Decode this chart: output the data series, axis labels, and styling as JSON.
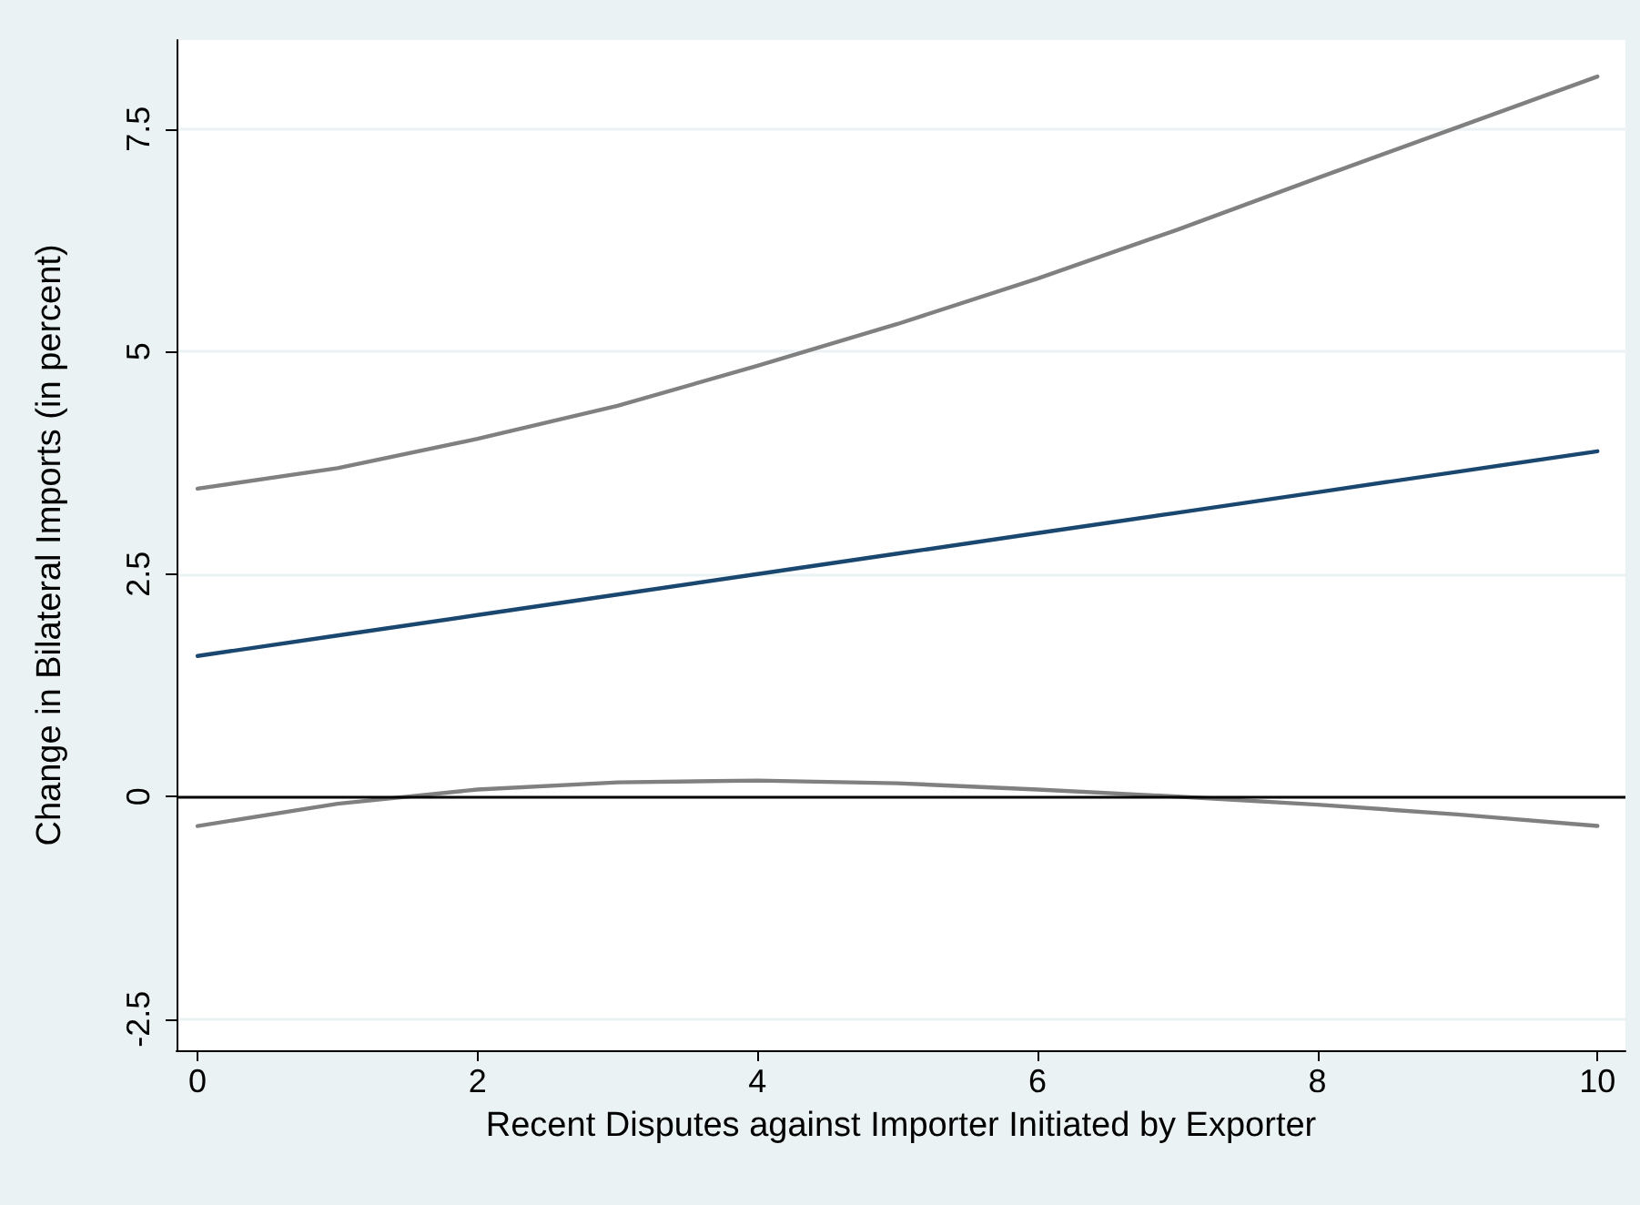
{
  "chart_data": {
    "type": "line",
    "xlabel": "Recent Disputes against Importer Initiated by Exporter",
    "ylabel": "Change in Bilateral Imports (in percent)",
    "x": [
      0,
      1,
      2,
      3,
      4,
      5,
      6,
      7,
      8,
      9,
      10
    ],
    "series": [
      {
        "color": "#808080",
        "values": [
          3.46,
          3.69,
          4.02,
          4.39,
          4.84,
          5.31,
          5.82,
          6.37,
          6.95,
          7.52,
          8.09
        ]
      },
      {
        "color": "#1a476f",
        "values": [
          1.58,
          1.81,
          2.04,
          2.27,
          2.5,
          2.73,
          2.96,
          3.19,
          3.42,
          3.65,
          3.88
        ]
      },
      {
        "color": "#808080",
        "values": [
          -0.33,
          -0.08,
          0.08,
          0.16,
          0.18,
          0.15,
          0.08,
          0.0,
          -0.09,
          -0.2,
          -0.33
        ]
      }
    ],
    "xlim": [
      -0.15,
      10.2
    ],
    "xticks": [
      0,
      2,
      4,
      6,
      8,
      10
    ],
    "ylim": [
      -2.85,
      8.5
    ],
    "yticks": [
      -2.5,
      0,
      2.5,
      5,
      7.5
    ],
    "ref_lines": [
      {
        "axis": "y",
        "value": 0,
        "color": "#000000"
      }
    ],
    "grid": "y",
    "marker": "none",
    "line_style": "solid"
  }
}
